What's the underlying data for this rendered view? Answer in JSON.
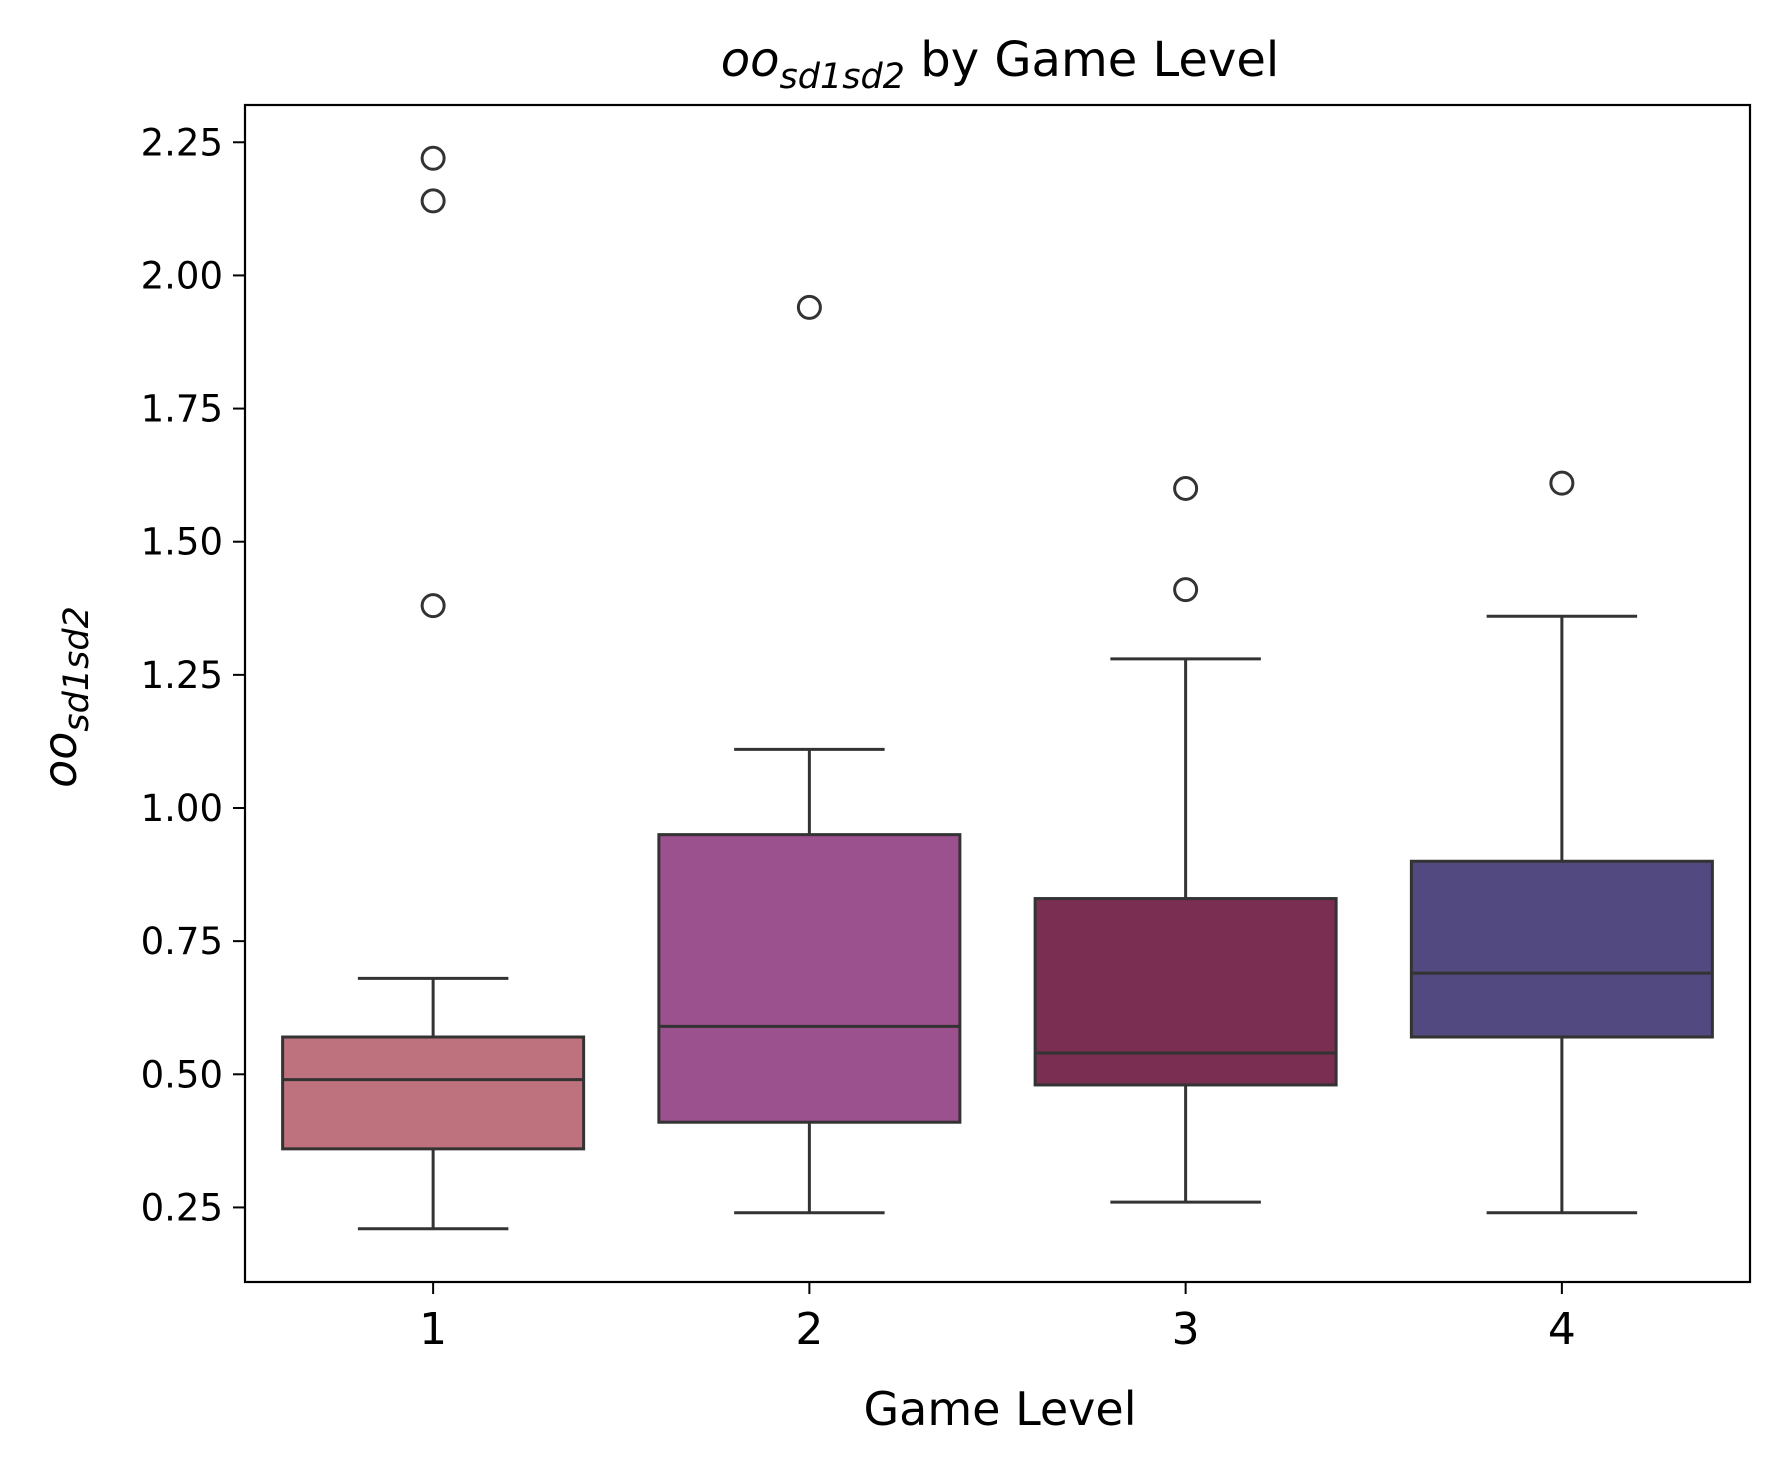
{
  "chart_data": {
    "type": "box",
    "title": {
      "main": "oo",
      "sub": "sd1sd2",
      "rest": " by Game Level"
    },
    "xlabel": "Game Level",
    "ylabel": {
      "main": "oo",
      "sub": "sd1sd2"
    },
    "ylim": [
      0.11,
      2.32
    ],
    "yticks": [
      "0.25",
      "0.50",
      "0.75",
      "1.00",
      "1.25",
      "1.50",
      "1.75",
      "2.00",
      "2.25"
    ],
    "categories": [
      "1",
      "2",
      "3",
      "4"
    ],
    "boxes": [
      {
        "category": "1",
        "color": "#bd727d",
        "whisker_low": 0.21,
        "q1": 0.36,
        "median": 0.49,
        "q3": 0.57,
        "whisker_high": 0.68,
        "outliers": [
          1.38,
          2.14,
          2.22
        ]
      },
      {
        "category": "2",
        "color": "#9b518d",
        "whisker_low": 0.24,
        "q1": 0.41,
        "median": 0.59,
        "q3": 0.95,
        "whisker_high": 1.11,
        "outliers": [
          1.94
        ]
      },
      {
        "category": "3",
        "color": "#7a2e52",
        "whisker_low": 0.26,
        "q1": 0.48,
        "median": 0.54,
        "q3": 0.83,
        "whisker_high": 1.28,
        "outliers": [
          1.41,
          1.6
        ]
      },
      {
        "category": "4",
        "color": "#524980",
        "whisker_low": 0.24,
        "q1": 0.57,
        "median": 0.69,
        "q3": 0.9,
        "whisker_high": 1.36,
        "outliers": [
          1.61
        ]
      }
    ],
    "edge_color": "#333333",
    "grid": false,
    "legend": "none"
  }
}
